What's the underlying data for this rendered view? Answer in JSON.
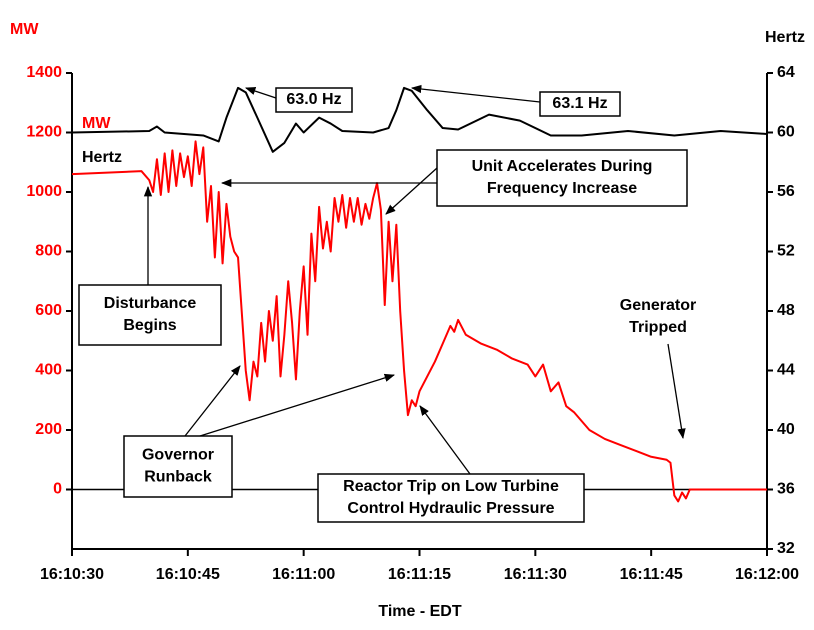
{
  "chart_data": {
    "type": "line",
    "y_label": "MW",
    "y2_label": "Hertz",
    "x_label": "Time - EDT",
    "xlim": [
      "16:10:30",
      "16:12:00"
    ],
    "xticks": [
      "16:10:30",
      "16:10:45",
      "16:11:00",
      "16:11:15",
      "16:11:30",
      "16:11:45",
      "16:12:00"
    ],
    "ylim": [
      -200,
      1400
    ],
    "yticks": [
      0,
      200,
      400,
      600,
      800,
      1000,
      1200,
      1400
    ],
    "y2lim": [
      32,
      64
    ],
    "y2ticks": [
      32,
      36,
      40,
      44,
      48,
      52,
      56,
      60,
      64
    ],
    "series": [
      {
        "name": "MW",
        "color": "#ff0000",
        "axis": "y",
        "x": [
          "16:10:30",
          "16:10:39",
          "16:10:40",
          "16:10:40.5",
          "16:10:41",
          "16:10:41.5",
          "16:10:42",
          "16:10:42.5",
          "16:10:43",
          "16:10:43.5",
          "16:10:44",
          "16:10:44.5",
          "16:10:45",
          "16:10:45.5",
          "16:10:46",
          "16:10:46.5",
          "16:10:47",
          "16:10:47.5",
          "16:10:48",
          "16:10:48.5",
          "16:10:49",
          "16:10:49.5",
          "16:10:50",
          "16:10:50.5",
          "16:10:51",
          "16:10:51.5",
          "16:10:52.5",
          "16:10:53",
          "16:10:53.5",
          "16:10:54",
          "16:10:54.5",
          "16:10:55",
          "16:10:55.5",
          "16:10:56",
          "16:10:56.5",
          "16:10:57",
          "16:10:57.5",
          "16:10:58",
          "16:10:58.5",
          "16:10:59",
          "16:10:59.5",
          "16:11:00",
          "16:11:00.5",
          "16:11:01",
          "16:11:01.5",
          "16:11:02",
          "16:11:02.5",
          "16:11:03",
          "16:11:03.5",
          "16:11:04",
          "16:11:04.5",
          "16:11:05",
          "16:11:05.5",
          "16:11:06",
          "16:11:06.5",
          "16:11:07",
          "16:11:07.5",
          "16:11:08",
          "16:11:08.5",
          "16:11:09",
          "16:11:09.5",
          "16:11:10",
          "16:11:10.5",
          "16:11:11",
          "16:11:11.5",
          "16:11:12",
          "16:11:12.5",
          "16:11:13",
          "16:11:13.5",
          "16:11:14",
          "16:11:14.5",
          "16:11:15",
          "16:11:16",
          "16:11:17",
          "16:11:18",
          "16:11:19",
          "16:11:19.5",
          "16:11:20",
          "16:11:21",
          "16:11:23",
          "16:11:25",
          "16:11:27",
          "16:11:29",
          "16:11:30",
          "16:11:31",
          "16:11:32",
          "16:11:33",
          "16:11:34",
          "16:11:35",
          "16:11:37",
          "16:11:39",
          "16:11:41",
          "16:11:43",
          "16:11:45",
          "16:11:47",
          "16:11:47.5",
          "16:11:48",
          "16:11:48.5",
          "16:11:49",
          "16:11:49.5",
          "16:11:50",
          "16:12:00"
        ],
        "values": [
          1060,
          1070,
          1040,
          1000,
          1110,
          990,
          1130,
          1000,
          1140,
          1020,
          1130,
          1050,
          1120,
          1020,
          1170,
          1060,
          1150,
          900,
          1020,
          780,
          1000,
          760,
          960,
          850,
          800,
          780,
          400,
          300,
          430,
          380,
          560,
          430,
          600,
          500,
          650,
          380,
          520,
          700,
          560,
          370,
          600,
          750,
          520,
          860,
          700,
          950,
          810,
          900,
          800,
          980,
          900,
          990,
          880,
          980,
          900,
          980,
          890,
          960,
          910,
          980,
          1030,
          940,
          620,
          900,
          700,
          890,
          600,
          400,
          250,
          300,
          280,
          330,
          380,
          430,
          490,
          550,
          530,
          570,
          520,
          490,
          470,
          440,
          420,
          380,
          420,
          330,
          360,
          280,
          260,
          200,
          170,
          150,
          130,
          110,
          100,
          90,
          -20,
          -40,
          -10,
          -30,
          0,
          0
        ]
      },
      {
        "name": "Hertz",
        "color": "#000000",
        "axis": "y2",
        "x": [
          "16:10:30",
          "16:10:40",
          "16:10:41",
          "16:10:42",
          "16:10:47",
          "16:10:49",
          "16:10:50",
          "16:10:51.5",
          "16:10:52.5",
          "16:10:54",
          "16:10:56",
          "16:10:57.5",
          "16:10:59",
          "16:11:00",
          "16:11:02",
          "16:11:03.5",
          "16:11:05",
          "16:11:09",
          "16:11:11",
          "16:11:12",
          "16:11:13",
          "16:11:14",
          "16:11:16",
          "16:11:18",
          "16:11:20",
          "16:11:24",
          "16:11:28",
          "16:11:32",
          "16:11:36",
          "16:11:42",
          "16:11:48",
          "16:11:54",
          "16:12:00"
        ],
        "values": [
          60.0,
          60.1,
          60.4,
          60.0,
          59.8,
          59.4,
          61.0,
          63.0,
          62.7,
          61.0,
          58.7,
          59.3,
          60.6,
          60.0,
          61.0,
          60.6,
          60.1,
          60.0,
          60.3,
          61.5,
          63.0,
          62.8,
          61.5,
          60.3,
          60.2,
          61.2,
          60.8,
          59.8,
          59.8,
          60.1,
          59.8,
          60.1,
          59.9
        ]
      }
    ],
    "annotations": [
      {
        "lines": [
          "63.0 Hz"
        ]
      },
      {
        "lines": [
          "63.1 Hz"
        ]
      },
      {
        "lines": [
          "Unit Accelerates During",
          "Frequency Increase"
        ]
      },
      {
        "lines": [
          "Disturbance",
          "Begins"
        ]
      },
      {
        "lines": [
          "Governor",
          "Runback"
        ]
      },
      {
        "lines": [
          "Reactor Trip on Low Turbine",
          "Control Hydraulic Pressure"
        ]
      },
      {
        "lines": [
          "Generator",
          "Tripped"
        ]
      }
    ]
  }
}
